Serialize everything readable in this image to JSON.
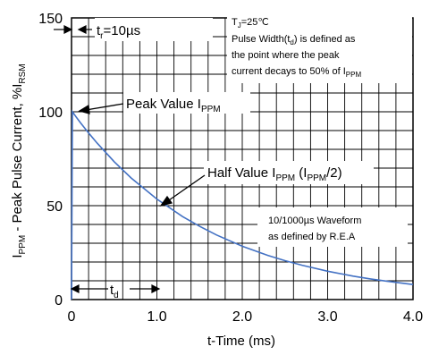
{
  "chart_data": {
    "type": "line",
    "xlabel": "t-Time (ms)",
    "ylabel": {
      "base": "I",
      "sub": "PPM",
      "mid": " - Peak Pulse Current, %I",
      "sub2": "RSM"
    },
    "xlim": [
      0,
      4.0
    ],
    "ylim": [
      0,
      150
    ],
    "x_ticks": [
      "0",
      "1.0",
      "2.0",
      "3.0",
      "4.0"
    ],
    "y_ticks": [
      "0",
      "50",
      "100",
      "150"
    ],
    "grid": true,
    "series": [
      {
        "color": "#4472c4",
        "x": [
          0,
          0.01,
          0.05,
          0.1,
          0.2,
          0.3,
          0.5,
          0.7,
          1.0,
          1.3,
          1.5,
          1.7,
          2.0,
          2.3,
          2.5,
          2.7,
          3.0,
          3.3,
          3.5,
          3.7,
          4.0
        ],
        "y": [
          0,
          100,
          97.5,
          94.5,
          88.7,
          83.3,
          73.4,
          64.7,
          53.5,
          44.2,
          39.0,
          34.4,
          28.4,
          23.5,
          20.7,
          18.3,
          15.1,
          12.5,
          11.0,
          9.7,
          8.0
        ]
      }
    ],
    "annotations": {
      "tr": {
        "base": "t",
        "sub": "r",
        "rest": "=10µs"
      },
      "td": {
        "base": "t",
        "sub": "d"
      },
      "peak": {
        "text": "Peak Value I",
        "sub": "PPM"
      },
      "half": {
        "text": "Half Value I",
        "sub": "PPM",
        "mid": " (I",
        "sub2": "PPM",
        "end": "/2)"
      },
      "note_box": {
        "line1_base": "T",
        "line1_sub": "J",
        "line1_rest": "=25℃",
        "line2_a": "Pulse Width(t",
        "line2_sub": "d",
        "line2_b": ") is defined as",
        "line3": "the point where the peak",
        "line4_a": "current decays to 50% of I",
        "line4_sub": "PPM"
      },
      "waveform_box": {
        "line1": "10/1000µs Waveform",
        "line2": "as defined by R.E.A"
      }
    }
  }
}
